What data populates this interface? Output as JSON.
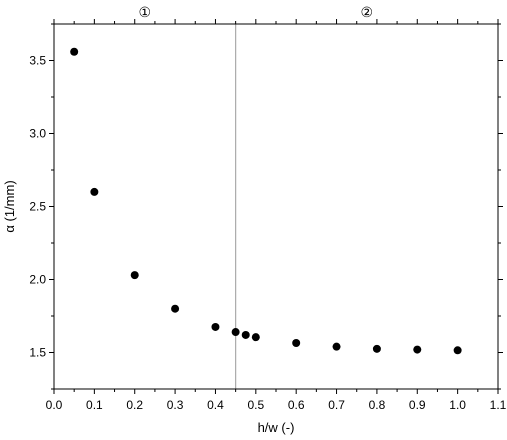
{
  "chart_data": {
    "type": "scatter",
    "title": "",
    "xlabel": "h/w (-)",
    "ylabel": "α (1/mm)",
    "xlim": [
      0.0,
      1.1
    ],
    "ylim": [
      1.25,
      3.75
    ],
    "xticks": [
      0.0,
      0.1,
      0.2,
      0.3,
      0.4,
      0.5,
      0.6,
      0.7,
      0.8,
      0.9,
      1.0,
      1.1
    ],
    "xtick_labels": [
      "0.0",
      "0.1",
      "0.2",
      "0.3",
      "0.4",
      "0.5",
      "0.6",
      "0.7",
      "0.8",
      "0.9",
      "1.0",
      "1.1"
    ],
    "yticks": [
      1.5,
      2.0,
      2.5,
      3.0,
      3.5
    ],
    "ytick_labels": [
      "1.5",
      "2.0",
      "2.5",
      "3.0",
      "3.5"
    ],
    "series": [
      {
        "x": [
          0.05,
          0.1,
          0.2,
          0.3,
          0.4,
          0.45,
          0.475,
          0.5,
          0.6,
          0.7,
          0.8,
          0.9,
          1.0
        ],
        "y": [
          3.56,
          2.6,
          2.03,
          1.8,
          1.675,
          1.64,
          1.62,
          1.605,
          1.565,
          1.54,
          1.525,
          1.52,
          1.515
        ],
        "color": "#000000"
      }
    ],
    "vertical_line": {
      "x": 0.45,
      "color": "#aaaaaa"
    },
    "region_labels": [
      {
        "text": "①",
        "x": 0.225
      },
      {
        "text": "②",
        "x": 0.775
      }
    ],
    "grid": false
  }
}
